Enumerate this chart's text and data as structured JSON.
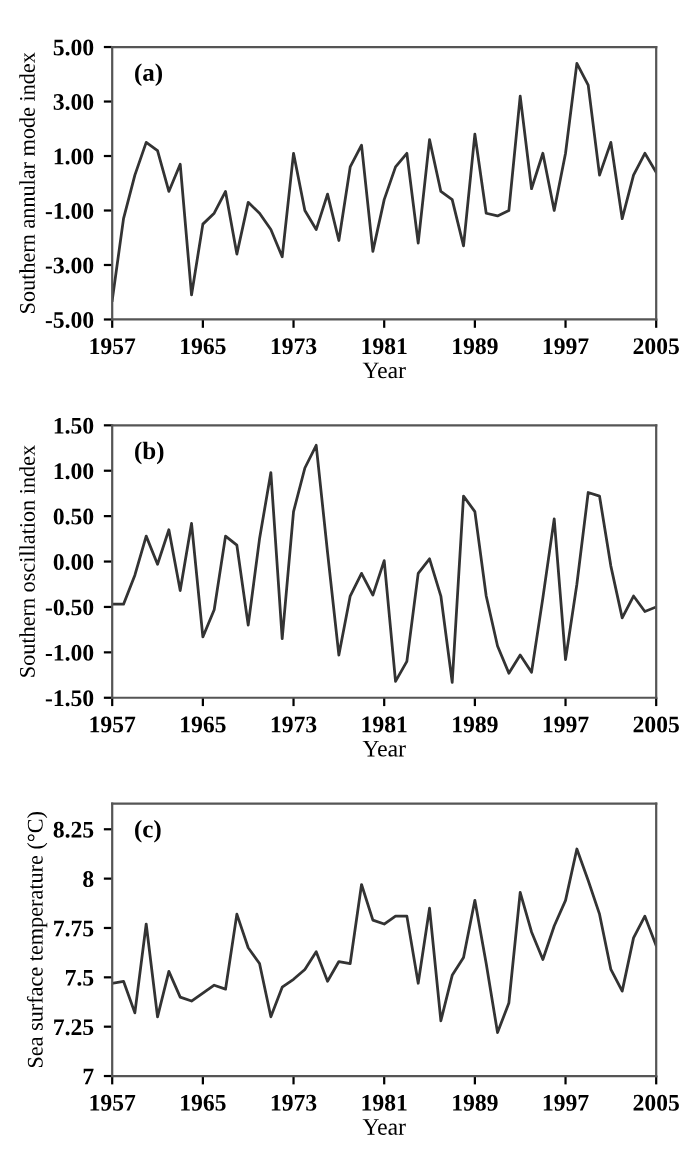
{
  "chart_data": [
    {
      "type": "line",
      "xlabel": "Year",
      "ylabel": "Southern annular mode index",
      "annotations": [
        "(a)"
      ],
      "grid": false,
      "legend": false,
      "marker": "none",
      "line_style": "solid",
      "x": [
        1957,
        1958,
        1959,
        1960,
        1961,
        1962,
        1963,
        1964,
        1965,
        1966,
        1967,
        1968,
        1969,
        1970,
        1971,
        1972,
        1973,
        1974,
        1975,
        1976,
        1977,
        1978,
        1979,
        1980,
        1981,
        1982,
        1983,
        1984,
        1985,
        1986,
        1987,
        1988,
        1989,
        1990,
        1991,
        1992,
        1993,
        1994,
        1995,
        1996,
        1997,
        1998,
        1999,
        2000,
        2001,
        2002,
        2003,
        2004,
        2005
      ],
      "series": [
        {
          "color": "#333333",
          "values": [
            -4.3,
            -1.3,
            0.3,
            1.5,
            1.2,
            -0.3,
            0.7,
            -4.1,
            -1.5,
            -1.1,
            -0.3,
            -2.6,
            -0.7,
            -1.1,
            -1.7,
            -2.7,
            1.1,
            -1.0,
            -1.7,
            -0.4,
            -2.1,
            0.6,
            1.4,
            -2.5,
            -0.6,
            0.6,
            1.1,
            -2.2,
            1.6,
            -0.3,
            -0.6,
            -2.3,
            1.8,
            -1.1,
            -1.2,
            -1.0,
            3.2,
            -0.2,
            1.1,
            -1.0,
            1.1,
            4.4,
            3.6,
            0.3,
            1.5,
            -1.3,
            0.3,
            1.1,
            0.4
          ]
        }
      ],
      "xlim": [
        1957,
        2005
      ],
      "xticks": [
        1957,
        1965,
        1973,
        1981,
        1989,
        1997,
        2005
      ],
      "ylim": [
        -5,
        5
      ],
      "yticks": [
        {
          "value": 5,
          "label": "5.00"
        },
        {
          "value": 3,
          "label": "3.00"
        },
        {
          "value": 1,
          "label": "1.00"
        },
        {
          "value": -1,
          "label": "-1.00"
        },
        {
          "value": -3,
          "label": "-3.00"
        },
        {
          "value": -5,
          "label": "-5.00"
        }
      ]
    },
    {
      "type": "line",
      "xlabel": "Year",
      "ylabel": "Southern oscillation index",
      "annotations": [
        "(b)"
      ],
      "grid": false,
      "legend": false,
      "marker": "none",
      "line_style": "solid",
      "x": [
        1957,
        1958,
        1959,
        1960,
        1961,
        1962,
        1963,
        1964,
        1965,
        1966,
        1967,
        1968,
        1969,
        1970,
        1971,
        1972,
        1973,
        1974,
        1975,
        1976,
        1977,
        1978,
        1979,
        1980,
        1981,
        1982,
        1983,
        1984,
        1985,
        1986,
        1987,
        1988,
        1989,
        1990,
        1991,
        1992,
        1993,
        1994,
        1995,
        1996,
        1997,
        1998,
        1999,
        2000,
        2001,
        2002,
        2003,
        2004,
        2005
      ],
      "series": [
        {
          "color": "#333333",
          "values": [
            -0.47,
            -0.47,
            -0.15,
            0.28,
            -0.03,
            0.35,
            -0.32,
            0.42,
            -0.83,
            -0.53,
            0.28,
            0.18,
            -0.7,
            0.25,
            0.98,
            -0.85,
            0.55,
            1.03,
            1.28,
            0.1,
            -1.03,
            -0.38,
            -0.13,
            -0.37,
            0.01,
            -1.32,
            -1.1,
            -0.13,
            0.03,
            -0.38,
            -1.33,
            0.72,
            0.55,
            -0.38,
            -0.93,
            -1.23,
            -1.03,
            -1.22,
            -0.4,
            0.47,
            -1.08,
            -0.25,
            0.76,
            0.72,
            -0.05,
            -0.62,
            -0.38,
            -0.55,
            -0.5
          ]
        }
      ],
      "xlim": [
        1957,
        2005
      ],
      "xticks": [
        1957,
        1965,
        1973,
        1981,
        1989,
        1997,
        2005
      ],
      "ylim": [
        -1.5,
        1.5
      ],
      "yticks": [
        {
          "value": 1.5,
          "label": "1.50"
        },
        {
          "value": 1,
          "label": "1.00"
        },
        {
          "value": 0.5,
          "label": "0.50"
        },
        {
          "value": 0,
          "label": "0.00"
        },
        {
          "value": -0.5,
          "label": "-0.50"
        },
        {
          "value": -1,
          "label": "-1.00"
        },
        {
          "value": -1.5,
          "label": "-1.50"
        }
      ]
    },
    {
      "type": "line",
      "xlabel": "Year",
      "ylabel": "Sea surface temperature (°C)",
      "annotations": [
        "(c)"
      ],
      "grid": false,
      "legend": false,
      "marker": "none",
      "line_style": "solid",
      "x": [
        1957,
        1958,
        1959,
        1960,
        1961,
        1962,
        1963,
        1964,
        1965,
        1966,
        1967,
        1968,
        1969,
        1970,
        1971,
        1972,
        1973,
        1974,
        1975,
        1976,
        1977,
        1978,
        1979,
        1980,
        1981,
        1982,
        1983,
        1984,
        1985,
        1986,
        1987,
        1988,
        1989,
        1990,
        1991,
        1992,
        1993,
        1994,
        1995,
        1996,
        1997,
        1998,
        1999,
        2000,
        2001,
        2002,
        2003,
        2004,
        2005
      ],
      "series": [
        {
          "color": "#333333",
          "values": [
            7.47,
            7.48,
            7.32,
            7.77,
            7.3,
            7.53,
            7.4,
            7.38,
            7.42,
            7.46,
            7.44,
            7.82,
            7.65,
            7.57,
            7.3,
            7.45,
            7.49,
            7.54,
            7.63,
            7.48,
            7.58,
            7.57,
            7.97,
            7.79,
            7.77,
            7.81,
            7.81,
            7.47,
            7.85,
            7.28,
            7.51,
            7.6,
            7.89,
            7.57,
            7.22,
            7.37,
            7.93,
            7.73,
            7.59,
            7.76,
            7.89,
            8.15,
            7.99,
            7.82,
            7.54,
            7.43,
            7.7,
            7.81,
            7.66
          ]
        }
      ],
      "xlim": [
        1957,
        2005
      ],
      "xticks": [
        1957,
        1965,
        1973,
        1981,
        1989,
        1997,
        2005
      ],
      "ylim": [
        7,
        8.38
      ],
      "yticks": [
        8.25,
        8,
        7.75,
        7.5,
        7.25,
        7
      ]
    }
  ]
}
